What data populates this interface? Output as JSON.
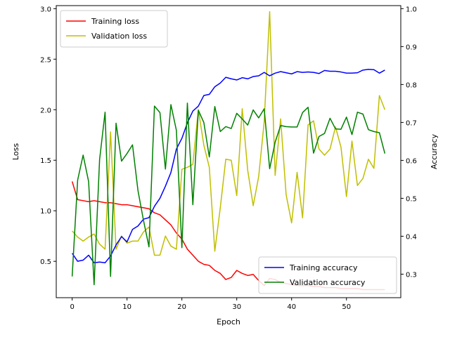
{
  "chart_data": {
    "type": "line",
    "title": "",
    "xlabel": "Epoch",
    "ylabel_left": "Loss",
    "ylabel_right": "Accuracy",
    "xlim": [
      -2.9,
      59.9
    ],
    "ylim_left": [
      0.14,
      3.03
    ],
    "ylim_right": [
      0.238,
      1.008
    ],
    "xticks": [
      0,
      10,
      20,
      30,
      40,
      50
    ],
    "yticks_left": [
      0.5,
      1.0,
      1.5,
      2.0,
      2.5,
      3.0
    ],
    "yticks_left_labels": [
      "0.5",
      "1.0",
      "1.5",
      "2.0",
      "2.5",
      "3.0"
    ],
    "yticks_right": [
      0.3,
      0.4,
      0.5,
      0.6,
      0.7,
      0.8,
      0.9,
      1.0
    ],
    "yticks_right_labels": [
      "0.3",
      "0.4",
      "0.5",
      "0.6",
      "0.7",
      "0.8",
      "0.9",
      "1.0"
    ],
    "grid": false,
    "x": [
      0,
      1,
      2,
      3,
      4,
      5,
      6,
      7,
      8,
      9,
      10,
      11,
      12,
      13,
      14,
      15,
      16,
      17,
      18,
      19,
      20,
      21,
      22,
      23,
      24,
      25,
      26,
      27,
      28,
      29,
      30,
      31,
      32,
      33,
      34,
      35,
      36,
      37,
      38,
      39,
      40,
      41,
      42,
      43,
      44,
      45,
      46,
      47,
      48,
      49,
      50,
      51,
      52,
      53,
      54,
      55,
      56,
      57
    ],
    "series": [
      {
        "name": "Training loss",
        "axis": "left",
        "color": "#ff0000",
        "values": [
          1.29,
          1.11,
          1.1,
          1.09,
          1.1,
          1.09,
          1.08,
          1.08,
          1.07,
          1.06,
          1.06,
          1.05,
          1.04,
          1.03,
          1.02,
          0.98,
          0.96,
          0.91,
          0.86,
          0.78,
          0.72,
          0.62,
          0.56,
          0.5,
          0.47,
          0.46,
          0.41,
          0.38,
          0.32,
          0.34,
          0.41,
          0.38,
          0.36,
          0.37,
          0.31,
          0.26,
          0.33,
          0.32,
          0.29,
          0.28,
          0.27,
          0.26,
          0.26,
          0.26,
          0.25,
          0.25,
          0.24,
          0.24,
          0.24,
          0.23,
          0.23,
          0.23,
          0.23,
          0.22,
          0.22,
          0.22,
          0.22,
          0.22
        ]
      },
      {
        "name": "Validation loss",
        "axis": "left",
        "color": "#bfbf00",
        "values": [
          0.8,
          0.74,
          0.7,
          0.74,
          0.77,
          0.67,
          0.62,
          1.78,
          0.62,
          0.75,
          0.68,
          0.7,
          0.7,
          0.79,
          0.84,
          0.56,
          0.56,
          0.75,
          0.65,
          0.62,
          1.41,
          1.43,
          1.46,
          2.0,
          1.65,
          1.43,
          0.6,
          1.03,
          1.51,
          1.5,
          1.15,
          2.01,
          1.4,
          1.05,
          1.34,
          1.88,
          2.97,
          1.35,
          1.91,
          1.16,
          0.88,
          1.38,
          0.93,
          1.85,
          1.89,
          1.61,
          1.55,
          1.61,
          1.83,
          1.63,
          1.14,
          1.69,
          1.25,
          1.32,
          1.51,
          1.42,
          2.14,
          2.0
        ]
      },
      {
        "name": "Training accuracy",
        "axis": "right",
        "color": "#0000ff",
        "values": [
          0.355,
          0.334,
          0.337,
          0.35,
          0.33,
          0.332,
          0.33,
          0.348,
          0.377,
          0.399,
          0.385,
          0.418,
          0.427,
          0.445,
          0.449,
          0.479,
          0.5,
          0.532,
          0.568,
          0.63,
          0.658,
          0.699,
          0.73,
          0.743,
          0.771,
          0.774,
          0.794,
          0.804,
          0.819,
          0.815,
          0.812,
          0.818,
          0.815,
          0.821,
          0.823,
          0.832,
          0.823,
          0.83,
          0.834,
          0.831,
          0.828,
          0.834,
          0.832,
          0.833,
          0.832,
          0.829,
          0.837,
          0.835,
          0.835,
          0.833,
          0.83,
          0.83,
          0.831,
          0.838,
          0.84,
          0.839,
          0.83,
          0.838
        ]
      },
      {
        "name": "Validation accuracy",
        "axis": "right",
        "color": "#008000",
        "values": [
          0.294,
          0.548,
          0.614,
          0.544,
          0.272,
          0.602,
          0.727,
          0.294,
          0.698,
          0.598,
          0.618,
          0.641,
          0.52,
          0.442,
          0.372,
          0.743,
          0.726,
          0.577,
          0.747,
          0.679,
          0.37,
          0.751,
          0.483,
          0.732,
          0.7,
          0.609,
          0.742,
          0.676,
          0.689,
          0.684,
          0.724,
          0.709,
          0.693,
          0.733,
          0.712,
          0.736,
          0.578,
          0.648,
          0.692,
          0.689,
          0.688,
          0.688,
          0.726,
          0.74,
          0.619,
          0.663,
          0.671,
          0.711,
          0.683,
          0.682,
          0.714,
          0.668,
          0.727,
          0.722,
          0.681,
          0.676,
          0.673,
          0.618
        ]
      }
    ],
    "legends": [
      {
        "position": "upper-left",
        "entries": [
          "Training loss",
          "Validation loss"
        ]
      },
      {
        "position": "lower-right",
        "entries": [
          "Training accuracy",
          "Validation accuracy"
        ]
      }
    ]
  }
}
